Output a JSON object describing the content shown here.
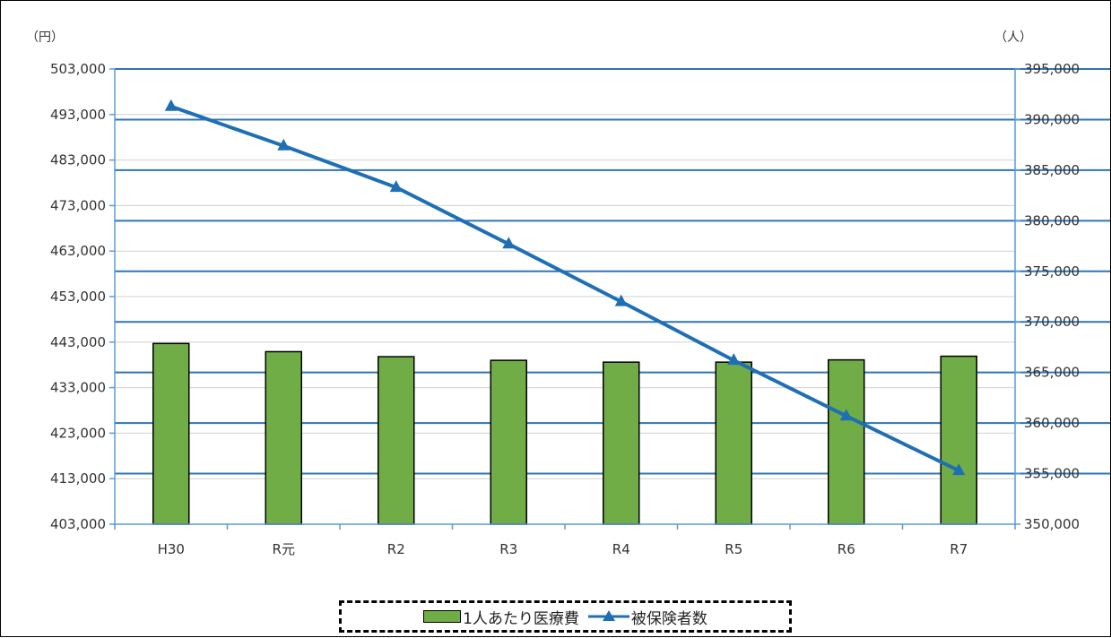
{
  "chart_data": {
    "type": "bar+line",
    "categories": [
      "H30",
      "R元",
      "R2",
      "R3",
      "R4",
      "R5",
      "R6",
      "R7"
    ],
    "y_left": {
      "unit_label": "（円）",
      "min": 403000,
      "max": 503000,
      "step": 10000,
      "ticks": [
        "503,000",
        "493,000",
        "483,000",
        "473,000",
        "463,000",
        "453,000",
        "443,000",
        "433,000",
        "423,000",
        "413,000",
        "403,000"
      ]
    },
    "y_right": {
      "unit_label": "（人）",
      "min": 350000,
      "max": 395000,
      "step": 5000,
      "ticks": [
        "395,000",
        "390,000",
        "385,000",
        "380,000",
        "375,000",
        "370,000",
        "365,000",
        "360,000",
        "355,000",
        "350,000"
      ]
    },
    "series": [
      {
        "name": "1人あたり医療費",
        "type": "bar",
        "axis": "left",
        "color": "#70ad47",
        "values": [
          442700,
          440900,
          439800,
          439000,
          438600,
          438600,
          439100,
          439900
        ]
      },
      {
        "name": "被保険者数",
        "type": "line",
        "axis": "right",
        "color": "#1f6fb5",
        "marker": "triangle",
        "values": [
          391300,
          387400,
          383300,
          377700,
          372000,
          366200,
          360700,
          355300
        ]
      }
    ],
    "grid": true,
    "legend_position": "bottom"
  }
}
